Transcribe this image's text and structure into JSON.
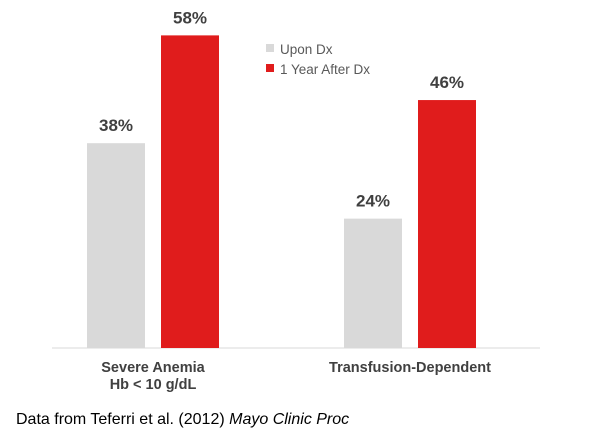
{
  "chart_data": {
    "type": "bar",
    "categories": [
      [
        "Severe Anemia",
        "Hb < 10 g/dL"
      ],
      [
        "Transfusion-Dependent"
      ]
    ],
    "series": [
      {
        "name": "Upon Dx",
        "values": [
          38,
          24
        ],
        "labels": [
          "38%",
          "24%"
        ],
        "color": "#d9d9d9"
      },
      {
        "name": "1 Year After Dx",
        "values": [
          58,
          46
        ],
        "labels": [
          "58%",
          "46%"
        ],
        "color": "#e01c1c"
      }
    ],
    "ylim": [
      0,
      60
    ],
    "grid": false,
    "legend_position": "top-right"
  },
  "source": {
    "text": "Data from Teferri et al. (2012) ",
    "italic": "Mayo Clinic Proc"
  }
}
